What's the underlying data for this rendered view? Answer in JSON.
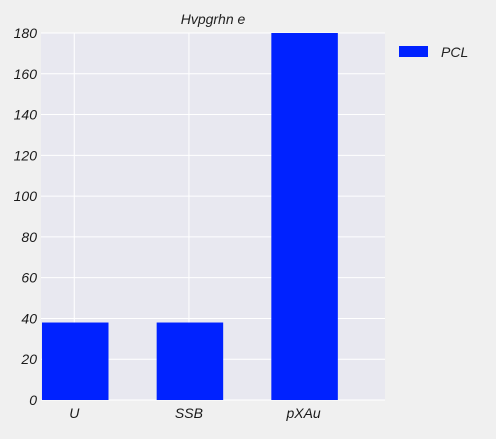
{
  "chart_data": {
    "type": "bar",
    "title": "Hvpgrhn e",
    "xlabel": "",
    "ylabel": "",
    "categories": [
      "U",
      "SSB",
      "pXAu"
    ],
    "series": [
      {
        "name": "PCL",
        "values": [
          38,
          38,
          180
        ]
      }
    ],
    "ylim": [
      0,
      180
    ],
    "yticks": [
      "0",
      "20",
      "40",
      "60",
      "80",
      "100",
      "120",
      "140",
      "160",
      "180"
    ],
    "grid": true,
    "legend_position": "top-right outside",
    "colors": {
      "bar": "#0022ff",
      "plot_background": "#e8e8f0",
      "page_background": "#f0f0f0",
      "grid": "#ffffff"
    }
  }
}
